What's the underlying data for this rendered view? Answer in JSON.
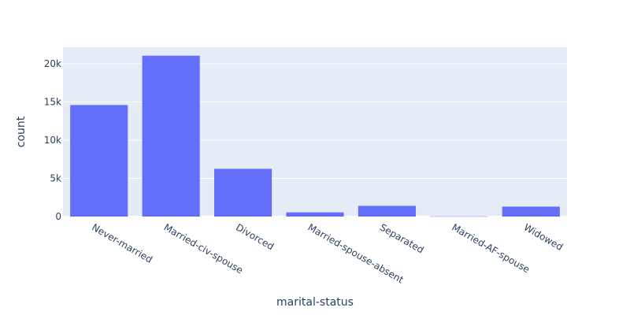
{
  "chart_data": {
    "type": "bar",
    "title": "",
    "xlabel": "marital-status",
    "ylabel": "count",
    "categories": [
      "Never-married",
      "Married-civ-spouse",
      "Divorced",
      "Married-spouse-absent",
      "Separated",
      "Married-AF-spouse",
      "Widowed"
    ],
    "values": [
      14598,
      21055,
      6250,
      550,
      1400,
      30,
      1300
    ],
    "ylim": [
      0,
      22163
    ],
    "yticks": [
      0,
      5000,
      10000,
      15000,
      20000
    ],
    "ytick_labels": [
      "0",
      "5k",
      "10k",
      "15k",
      "20k"
    ],
    "grid": true,
    "legend": "none",
    "colors": {
      "bar": "#636efa",
      "plot_bg": "#e5ecf6",
      "grid": "#ffffff",
      "text": "#2a3f5f"
    }
  }
}
